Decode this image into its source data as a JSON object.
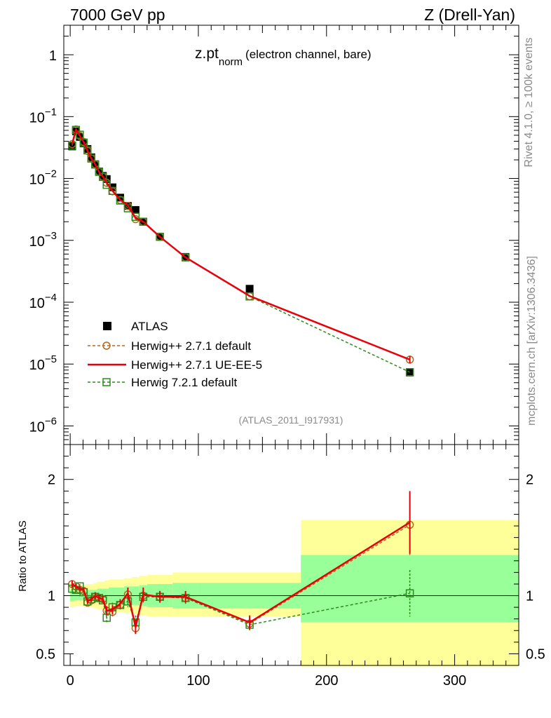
{
  "header": {
    "left": "7000 GeV pp",
    "right": "Z (Drell-Yan)"
  },
  "side_labels": {
    "rivet": "Rivet 4.1.0, ≥ 100k events",
    "mcplots": "mcplots.cern.ch [arXiv:1306.3436]"
  },
  "chart_data": {
    "type": "scatter",
    "title_main": "z.pt",
    "title_sub": "norm",
    "title_rest": "(electron channel, bare)",
    "analysis_id": "(ATLAS_2011_I917931)",
    "xlim": [
      -5,
      350
    ],
    "upper": {
      "yscale": "log",
      "ylim": [
        5e-07,
        3
      ],
      "yticks": [
        {
          "value": 1,
          "base": "1",
          "exp": ""
        },
        {
          "value": 0.1,
          "base": "10",
          "exp": "−1"
        },
        {
          "value": 0.01,
          "base": "10",
          "exp": "−2"
        },
        {
          "value": 0.001,
          "base": "10",
          "exp": "−3"
        },
        {
          "value": 0.0001,
          "base": "10",
          "exp": "−4"
        },
        {
          "value": 1e-05,
          "base": "10",
          "exp": "−5"
        },
        {
          "value": 1e-06,
          "base": "10",
          "exp": "−6"
        }
      ]
    },
    "lower": {
      "ylabel": "Ratio to ATLAS",
      "ylim": [
        0.4,
        2.3
      ],
      "yticks": [
        {
          "value": 0.5,
          "label": "0.5"
        },
        {
          "value": 1,
          "label": "1"
        },
        {
          "value": 2,
          "label": "2"
        }
      ],
      "band_edges": [
        0,
        3,
        6,
        9,
        12,
        15,
        18,
        21,
        24,
        27,
        30,
        36,
        42,
        48,
        54,
        60,
        80,
        100,
        180,
        350
      ],
      "green": [
        [
          0.95,
          1.05
        ],
        [
          0.96,
          1.04
        ],
        [
          0.96,
          1.04
        ],
        [
          0.96,
          1.04
        ],
        [
          0.95,
          1.05
        ],
        [
          0.95,
          1.05
        ],
        [
          0.95,
          1.05
        ],
        [
          0.94,
          1.06
        ],
        [
          0.94,
          1.06
        ],
        [
          0.94,
          1.06
        ],
        [
          0.93,
          1.07
        ],
        [
          0.93,
          1.07
        ],
        [
          0.92,
          1.08
        ],
        [
          0.92,
          1.08
        ],
        [
          0.91,
          1.09
        ],
        [
          0.9,
          1.1
        ],
        [
          0.89,
          1.11
        ],
        [
          0.89,
          1.11
        ],
        [
          0.77,
          1.35
        ]
      ],
      "yellow": [
        [
          0.9,
          1.1
        ],
        [
          0.91,
          1.09
        ],
        [
          0.91,
          1.09
        ],
        [
          0.91,
          1.09
        ],
        [
          0.9,
          1.1
        ],
        [
          0.9,
          1.1
        ],
        [
          0.89,
          1.11
        ],
        [
          0.88,
          1.12
        ],
        [
          0.88,
          1.12
        ],
        [
          0.87,
          1.13
        ],
        [
          0.86,
          1.14
        ],
        [
          0.86,
          1.14
        ],
        [
          0.85,
          1.15
        ],
        [
          0.84,
          1.16
        ],
        [
          0.83,
          1.17
        ],
        [
          0.82,
          1.18
        ],
        [
          0.82,
          1.2
        ],
        [
          0.82,
          1.2
        ],
        [
          0.39,
          1.65
        ]
      ]
    },
    "x_ticks": [
      {
        "value": 0,
        "label": "0"
      },
      {
        "value": 100,
        "label": "100"
      },
      {
        "value": 200,
        "label": "200"
      },
      {
        "value": 300,
        "label": "300"
      }
    ],
    "legend": {
      "atlas": "ATLAS",
      "h271": "Herwig++ 2.7.1 default",
      "ueee5": "Herwig++ 2.7.1 UE-EE-5",
      "h721": "Herwig 7.2.1 default"
    },
    "series": [
      {
        "name": "ATLAS",
        "x": [
          1.5,
          4.5,
          7.5,
          10.5,
          13.5,
          16.5,
          19.5,
          22.5,
          25.5,
          28.5,
          33,
          39,
          45,
          51,
          57,
          70,
          90,
          140,
          265
        ],
        "y": [
          0.033,
          0.058,
          0.047,
          0.037,
          0.03,
          0.022,
          0.017,
          0.013,
          0.011,
          0.0098,
          0.0072,
          0.0049,
          0.0036,
          0.0031,
          0.002,
          0.00115,
          0.00054,
          0.000165,
          7.3e-06
        ]
      },
      {
        "name": "Herwig++ 2.7.1 default",
        "y": [
          0.036,
          0.062,
          0.049,
          0.039,
          0.028,
          0.021,
          0.017,
          0.0128,
          0.0107,
          0.0085,
          0.0062,
          0.0045,
          0.0036,
          0.0022,
          0.002,
          0.00114,
          0.00053,
          0.000125,
          1.18e-05
        ],
        "ratio": [
          1.1,
          1.08,
          1.05,
          1.04,
          0.94,
          0.96,
          0.99,
          0.98,
          0.97,
          0.87,
          0.86,
          0.92,
          1.01,
          0.72,
          1.0,
          0.99,
          0.98,
          0.76,
          1.61
        ],
        "ratio_err": [
          0.03,
          0.02,
          0.02,
          0.02,
          0.02,
          0.02,
          0.03,
          0.03,
          0.03,
          0.04,
          0.04,
          0.04,
          0.05,
          0.06,
          0.06,
          0.05,
          0.05,
          0.06,
          0.27
        ]
      },
      {
        "name": "Herwig++ 2.7.1 UE-EE-5",
        "y": [
          0.036,
          0.062,
          0.049,
          0.039,
          0.028,
          0.021,
          0.017,
          0.0128,
          0.0107,
          0.0085,
          0.0063,
          0.0045,
          0.0037,
          0.0023,
          0.002,
          0.00114,
          0.00053,
          0.000126,
          1.18e-05
        ],
        "ratio": [
          1.1,
          1.08,
          1.06,
          1.05,
          0.95,
          0.97,
          1.0,
          0.98,
          0.97,
          0.87,
          0.88,
          0.93,
          1.02,
          0.73,
          1.01,
          0.99,
          0.99,
          0.77,
          1.63
        ],
        "ratio_err": [
          0.03,
          0.02,
          0.02,
          0.02,
          0.02,
          0.02,
          0.03,
          0.03,
          0.03,
          0.04,
          0.04,
          0.04,
          0.05,
          0.06,
          0.06,
          0.05,
          0.05,
          0.06,
          0.27
        ]
      },
      {
        "name": "Herwig 7.2.1 default",
        "y": [
          0.034,
          0.061,
          0.051,
          0.038,
          0.0285,
          0.021,
          0.0168,
          0.0128,
          0.0106,
          0.0079,
          0.0063,
          0.0044,
          0.0033,
          0.0024,
          0.002,
          0.00114,
          0.00053,
          0.000124,
          7.4e-06
        ],
        "ratio": [
          1.06,
          1.05,
          1.08,
          1.03,
          0.95,
          0.97,
          0.99,
          0.98,
          0.96,
          0.81,
          0.9,
          0.92,
          0.95,
          0.77,
          0.99,
          0.99,
          0.98,
          0.75,
          1.02
        ],
        "ratio_err": [
          0.03,
          0.02,
          0.02,
          0.02,
          0.02,
          0.02,
          0.03,
          0.03,
          0.03,
          0.04,
          0.04,
          0.04,
          0.05,
          0.06,
          0.06,
          0.05,
          0.05,
          0.06,
          0.2
        ]
      }
    ],
    "colors": {
      "h271": "#b8661c",
      "ueee5": "#e8000b",
      "h721": "#2b8b1b",
      "green_band": "#99ff99",
      "yellow_band": "#ffff99",
      "atlas": "#000000"
    }
  }
}
